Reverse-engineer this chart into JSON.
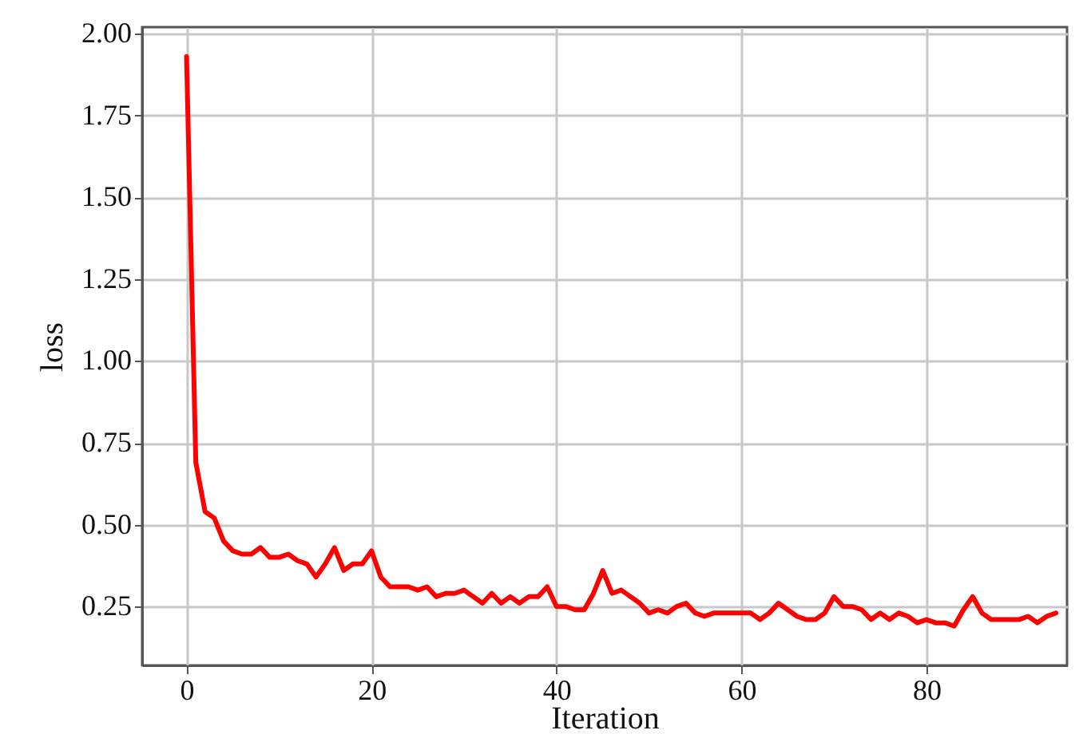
{
  "chart_data": {
    "type": "line",
    "xlabel": "Iteration",
    "ylabel": "loss",
    "x": [
      0,
      1,
      2,
      3,
      4,
      5,
      6,
      7,
      8,
      9,
      10,
      11,
      12,
      13,
      14,
      15,
      16,
      17,
      18,
      19,
      20,
      21,
      22,
      23,
      24,
      25,
      26,
      27,
      28,
      29,
      30,
      31,
      32,
      33,
      34,
      35,
      36,
      37,
      38,
      39,
      40,
      41,
      42,
      43,
      44,
      45,
      46,
      47,
      48,
      49,
      50,
      51,
      52,
      53,
      54,
      55,
      56,
      57,
      58,
      59,
      60,
      61,
      62,
      63,
      64,
      65,
      66,
      67,
      68,
      69,
      70,
      71,
      72,
      73,
      74,
      75,
      76,
      77,
      78,
      79,
      80,
      81,
      82,
      83,
      84,
      85,
      86,
      87,
      88,
      89,
      90,
      91,
      92,
      93,
      94
    ],
    "series": [
      {
        "color": "#ff0000",
        "values": [
          1.93,
          0.69,
          0.54,
          0.52,
          0.45,
          0.42,
          0.41,
          0.41,
          0.43,
          0.4,
          0.4,
          0.41,
          0.39,
          0.38,
          0.34,
          0.38,
          0.43,
          0.36,
          0.38,
          0.38,
          0.42,
          0.34,
          0.31,
          0.31,
          0.31,
          0.3,
          0.31,
          0.28,
          0.29,
          0.29,
          0.3,
          0.28,
          0.26,
          0.29,
          0.26,
          0.28,
          0.26,
          0.28,
          0.28,
          0.31,
          0.25,
          0.25,
          0.24,
          0.24,
          0.29,
          0.36,
          0.29,
          0.3,
          0.28,
          0.26,
          0.23,
          0.24,
          0.23,
          0.25,
          0.26,
          0.23,
          0.22,
          0.23,
          0.23,
          0.23,
          0.23,
          0.23,
          0.21,
          0.23,
          0.26,
          0.24,
          0.22,
          0.21,
          0.21,
          0.23,
          0.28,
          0.25,
          0.25,
          0.24,
          0.21,
          0.23,
          0.21,
          0.23,
          0.22,
          0.2,
          0.21,
          0.2,
          0.2,
          0.19,
          0.24,
          0.28,
          0.23,
          0.21,
          0.21,
          0.21,
          0.21,
          0.22,
          0.2,
          0.22,
          0.23
        ]
      }
    ],
    "xlim": [
      -4.8,
      95.2
    ],
    "xticks": [
      0,
      20,
      40,
      60,
      80
    ],
    "ylim": [
      0.07,
      2.02
    ],
    "yticks": [
      {
        "value": 0.25,
        "label": "0.25"
      },
      {
        "value": 0.5,
        "label": "0.50"
      },
      {
        "value": 0.75,
        "label": "0.75"
      },
      {
        "value": 1,
        "label": "1.00"
      },
      {
        "value": 1.25,
        "label": "1.25"
      },
      {
        "value": 1.5,
        "label": "1.50"
      },
      {
        "value": 1.75,
        "label": "1.75"
      },
      {
        "value": 2,
        "label": "2.00"
      }
    ],
    "grid": true,
    "line_style": "solid",
    "marker": "none"
  }
}
